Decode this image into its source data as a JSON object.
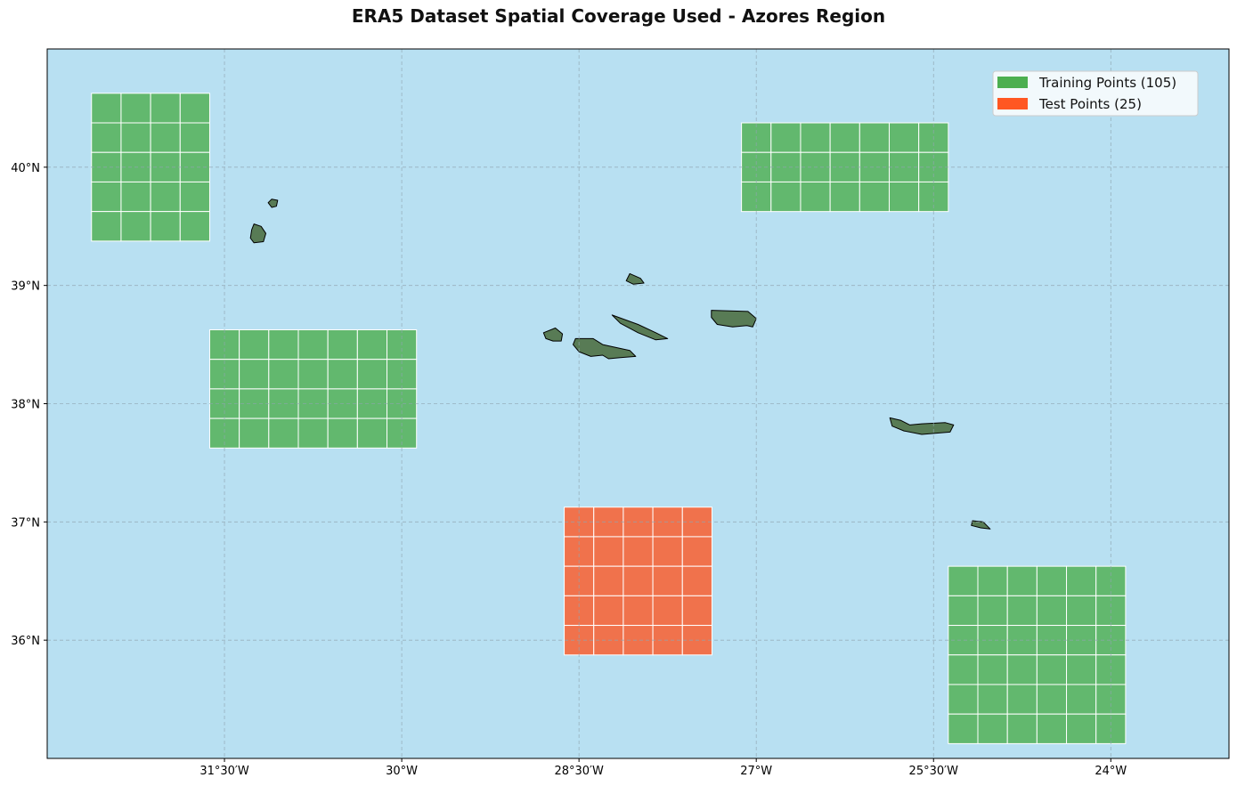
{
  "title": "ERA5 Dataset Spatial Coverage Used - Azores Region",
  "colors": {
    "ocean": "#b8e0f2",
    "training": "#62b86e",
    "test": "#f0724c",
    "land": "#587b55",
    "legend_training": "#4caf50",
    "legend_test": "#ff5722",
    "grid": "#8fa5b0"
  },
  "map": {
    "lon_range": [
      -33.0,
      -23.0
    ],
    "lat_range": [
      35.0,
      41.0
    ],
    "grid": true,
    "lon_ticks": [
      {
        "value": -31.5,
        "label": "31°30′W"
      },
      {
        "value": -30.0,
        "label": "30°W"
      },
      {
        "value": -28.5,
        "label": "28°30′W"
      },
      {
        "value": -27.0,
        "label": "27°W"
      },
      {
        "value": -25.5,
        "label": "25°30′W"
      },
      {
        "value": -24.0,
        "label": "24°W"
      }
    ],
    "lat_ticks": [
      {
        "value": 36,
        "label": "36°N"
      },
      {
        "value": 37,
        "label": "37°N"
      },
      {
        "value": 38,
        "label": "38°N"
      },
      {
        "value": 39,
        "label": "39°N"
      },
      {
        "value": 40,
        "label": "40°N"
      }
    ]
  },
  "legend": {
    "position": "top-right",
    "items": [
      {
        "label": "Training Points (105)",
        "color_key": "legend_training"
      },
      {
        "label": "Test Points (25)",
        "color_key": "legend_test"
      }
    ]
  },
  "regions": [
    {
      "kind": "training",
      "lon_min": -32.625,
      "lon_max": -31.625,
      "lat_min": 39.375,
      "lat_max": 40.625,
      "cols": 4,
      "rows": 5
    },
    {
      "kind": "training",
      "lon_min": -27.125,
      "lon_max": -25.375,
      "lat_min": 39.625,
      "lat_max": 40.375,
      "cols": 7,
      "rows": 3
    },
    {
      "kind": "training",
      "lon_min": -31.625,
      "lon_max": -29.875,
      "lat_min": 37.625,
      "lat_max": 38.625,
      "cols": 7,
      "rows": 4
    },
    {
      "kind": "test",
      "lon_min": -28.625,
      "lon_max": -27.375,
      "lat_min": 35.875,
      "lat_max": 37.125,
      "cols": 5,
      "rows": 5
    },
    {
      "kind": "training",
      "lon_min": -25.375,
      "lon_max": -23.875,
      "lat_min": 35.125,
      "lat_max": 36.625,
      "cols": 6,
      "rows": 6
    }
  ],
  "islands": [
    {
      "name": "Corvo",
      "coords": [
        [
          -31.1,
          39.73
        ],
        [
          -31.05,
          39.72
        ],
        [
          -31.06,
          39.67
        ],
        [
          -31.1,
          39.66
        ],
        [
          -31.13,
          39.7
        ]
      ]
    },
    {
      "name": "Flores",
      "coords": [
        [
          -31.25,
          39.52
        ],
        [
          -31.19,
          39.5
        ],
        [
          -31.15,
          39.44
        ],
        [
          -31.17,
          39.37
        ],
        [
          -31.25,
          39.36
        ],
        [
          -31.28,
          39.4
        ],
        [
          -31.27,
          39.47
        ]
      ]
    },
    {
      "name": "Graciosa",
      "coords": [
        [
          -28.07,
          39.1
        ],
        [
          -27.98,
          39.06
        ],
        [
          -27.95,
          39.02
        ],
        [
          -28.04,
          39.01
        ],
        [
          -28.1,
          39.04
        ]
      ]
    },
    {
      "name": "Terceira",
      "coords": [
        [
          -27.38,
          38.79
        ],
        [
          -27.07,
          38.78
        ],
        [
          -27.0,
          38.72
        ],
        [
          -27.03,
          38.65
        ],
        [
          -27.08,
          38.66
        ],
        [
          -27.2,
          38.65
        ],
        [
          -27.33,
          38.67
        ],
        [
          -27.38,
          38.73
        ]
      ]
    },
    {
      "name": "Sao Jorge",
      "coords": [
        [
          -28.22,
          38.75
        ],
        [
          -28.0,
          38.67
        ],
        [
          -27.85,
          38.6
        ],
        [
          -27.75,
          38.55
        ],
        [
          -27.85,
          38.54
        ],
        [
          -28.0,
          38.6
        ],
        [
          -28.15,
          38.68
        ]
      ]
    },
    {
      "name": "Faial",
      "coords": [
        [
          -28.8,
          38.6
        ],
        [
          -28.7,
          38.64
        ],
        [
          -28.64,
          38.59
        ],
        [
          -28.65,
          38.53
        ],
        [
          -28.72,
          38.53
        ],
        [
          -28.78,
          38.55
        ]
      ]
    },
    {
      "name": "Pico",
      "coords": [
        [
          -28.53,
          38.55
        ],
        [
          -28.38,
          38.55
        ],
        [
          -28.3,
          38.5
        ],
        [
          -28.07,
          38.45
        ],
        [
          -28.02,
          38.4
        ],
        [
          -28.15,
          38.39
        ],
        [
          -28.25,
          38.38
        ],
        [
          -28.3,
          38.41
        ],
        [
          -28.4,
          38.4
        ],
        [
          -28.5,
          38.44
        ],
        [
          -28.55,
          38.5
        ]
      ]
    },
    {
      "name": "Sao Miguel",
      "coords": [
        [
          -25.87,
          37.88
        ],
        [
          -25.78,
          37.86
        ],
        [
          -25.7,
          37.82
        ],
        [
          -25.6,
          37.83
        ],
        [
          -25.4,
          37.84
        ],
        [
          -25.33,
          37.82
        ],
        [
          -25.36,
          37.76
        ],
        [
          -25.6,
          37.74
        ],
        [
          -25.75,
          37.77
        ],
        [
          -25.85,
          37.81
        ]
      ]
    },
    {
      "name": "Santa Maria",
      "coords": [
        [
          -25.17,
          37.01
        ],
        [
          -25.08,
          37.0
        ],
        [
          -25.02,
          36.94
        ],
        [
          -25.1,
          36.95
        ],
        [
          -25.18,
          36.97
        ]
      ]
    }
  ]
}
